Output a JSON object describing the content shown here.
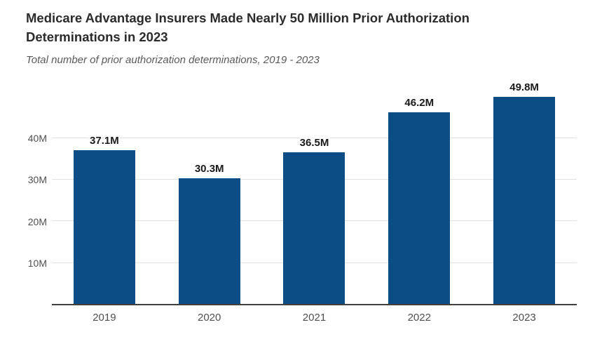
{
  "colors": {
    "bar": "#0b4d84",
    "title": "#2b2b2b",
    "subtitle": "#5a5a5a",
    "axis-label": "#4f4f4f",
    "value-label": "#1a1a1a",
    "gridline": "#e1e1e1",
    "axis-line": "#404040",
    "background": "#ffffff"
  },
  "chart_data": {
    "type": "bar",
    "title": "Medicare Advantage Insurers Made Nearly 50 Million Prior Authorization Determinations in 2023",
    "subtitle": "Total number of prior authorization determinations, 2019 - 2023",
    "categories": [
      "2019",
      "2020",
      "2021",
      "2022",
      "2023"
    ],
    "values": [
      37.1,
      30.3,
      36.5,
      46.2,
      49.8
    ],
    "value_labels": [
      "37.1M",
      "30.3M",
      "36.5M",
      "46.2M",
      "49.8M"
    ],
    "unit": "millions",
    "xlabel": "",
    "ylabel": "",
    "y_ticks": [
      {
        "value": 10,
        "label": "10M"
      },
      {
        "value": 20,
        "label": "20M"
      },
      {
        "value": 30,
        "label": "30M"
      },
      {
        "value": 40,
        "label": "40M"
      }
    ],
    "ylim": [
      0,
      51.2
    ],
    "grid": "horizontal",
    "legend": "none",
    "bar_color": "#0b4d84"
  }
}
